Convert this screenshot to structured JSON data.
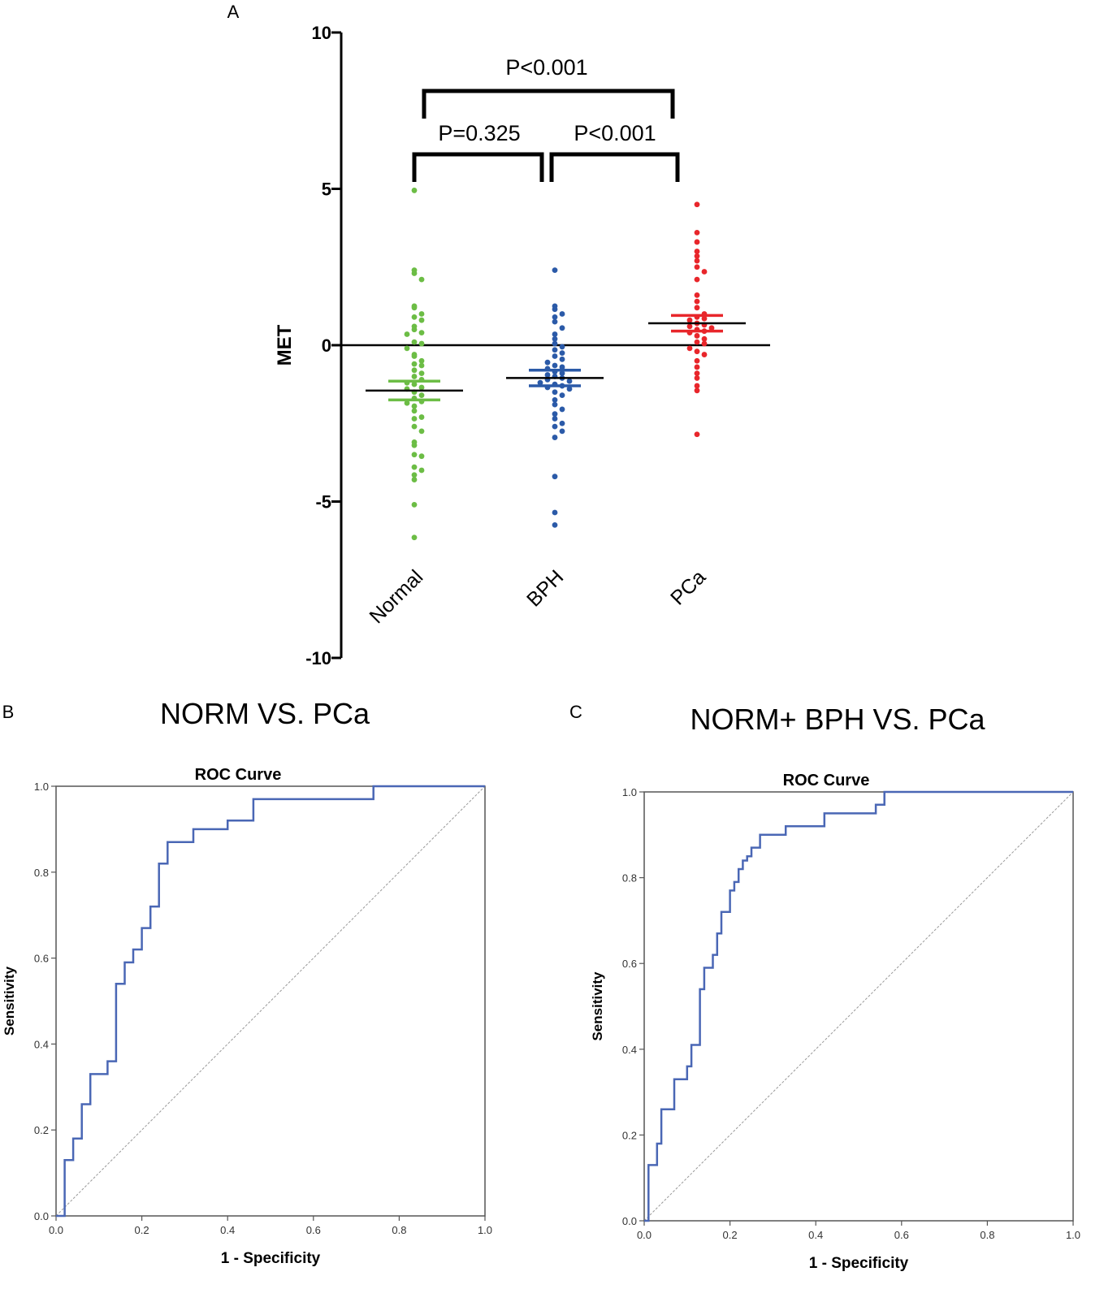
{
  "chart_data": [
    {
      "type": "scatter",
      "panel": "A",
      "ylabel": "MET",
      "ylim": [
        -10,
        10
      ],
      "yticks": [
        "10",
        "5",
        "0",
        "-5",
        "-10"
      ],
      "categories": [
        "Normal",
        "BPH",
        "PCa"
      ],
      "colors": {
        "Normal": "#6cbd45",
        "BPH": "#2b5aa8",
        "PCa": "#e8262b"
      },
      "groups": [
        {
          "name": "Normal",
          "mean": -1.45,
          "sem_low": -1.75,
          "sem_high": -1.15,
          "values": [
            4.95,
            2.4,
            2.3,
            2.1,
            1.25,
            1.2,
            1.0,
            0.9,
            0.8,
            0.6,
            0.5,
            0.4,
            0.35,
            0.1,
            0.05,
            -0.1,
            -0.3,
            -0.35,
            -0.5,
            -0.6,
            -0.65,
            -0.8,
            -0.9,
            -1.0,
            -1.1,
            -1.2,
            -1.25,
            -1.35,
            -1.4,
            -1.5,
            -1.6,
            -1.7,
            -1.8,
            -1.85,
            -1.95,
            -2.1,
            -2.3,
            -2.35,
            -2.6,
            -2.75,
            -3.1,
            -3.2,
            -3.5,
            -3.55,
            -3.9,
            -4.0,
            -4.15,
            -4.3,
            -5.1,
            -6.15
          ]
        },
        {
          "name": "BPH",
          "mean": -1.05,
          "sem_low": -1.3,
          "sem_high": -0.8,
          "values": [
            2.4,
            1.25,
            1.15,
            1.0,
            0.9,
            0.75,
            0.55,
            0.35,
            0.2,
            0.05,
            -0.05,
            -0.15,
            -0.25,
            -0.35,
            -0.45,
            -0.55,
            -0.65,
            -0.7,
            -0.75,
            -0.85,
            -0.9,
            -0.95,
            -1.0,
            -1.05,
            -1.1,
            -1.15,
            -1.2,
            -1.25,
            -1.3,
            -1.35,
            -1.4,
            -1.5,
            -1.6,
            -1.75,
            -1.9,
            -2.05,
            -2.2,
            -2.35,
            -2.5,
            -2.6,
            -2.75,
            -2.95,
            -4.2,
            -5.35,
            -5.75
          ]
        },
        {
          "name": "PCa",
          "mean": 0.7,
          "sem_low": 0.45,
          "sem_high": 0.95,
          "values": [
            4.5,
            3.6,
            3.3,
            3.0,
            2.85,
            2.7,
            2.5,
            2.35,
            2.1,
            1.6,
            1.4,
            1.2,
            1.0,
            0.9,
            0.85,
            0.8,
            0.7,
            0.65,
            0.6,
            0.55,
            0.5,
            0.45,
            0.4,
            0.3,
            0.2,
            0.1,
            0.05,
            -0.1,
            -0.2,
            -0.3,
            -0.5,
            -0.7,
            -0.9,
            -1.05,
            -1.3,
            -1.45,
            -2.85
          ]
        }
      ],
      "annotations": [
        {
          "text": "P=0.325",
          "from": "Normal",
          "to": "BPH",
          "level": "lower"
        },
        {
          "text": "P<0.001",
          "from": "BPH",
          "to": "PCa",
          "level": "lower"
        },
        {
          "text": "P<0.001",
          "from": "Normal",
          "to": "PCa",
          "level": "upper"
        }
      ]
    },
    {
      "type": "line",
      "panel": "B",
      "title": "NORM VS. PCa",
      "subtitle": "ROC Curve",
      "xlabel": "1 - Specificity",
      "ylabel": "Sensitivity",
      "xlim": [
        0,
        1
      ],
      "ylim": [
        0,
        1
      ],
      "xticks": [
        "0.0",
        "0.2",
        "0.4",
        "0.6",
        "0.8",
        "1.0"
      ],
      "yticks": [
        "0.0",
        "0.2",
        "0.4",
        "0.6",
        "0.8",
        "1.0"
      ],
      "reference_line": true,
      "x": [
        0.0,
        0.02,
        0.02,
        0.04,
        0.04,
        0.06,
        0.06,
        0.08,
        0.08,
        0.12,
        0.12,
        0.14,
        0.14,
        0.16,
        0.16,
        0.18,
        0.18,
        0.2,
        0.2,
        0.22,
        0.22,
        0.24,
        0.24,
        0.26,
        0.26,
        0.32,
        0.32,
        0.4,
        0.4,
        0.46,
        0.46,
        0.74,
        0.74,
        1.0
      ],
      "y": [
        0.0,
        0.0,
        0.13,
        0.13,
        0.18,
        0.18,
        0.26,
        0.26,
        0.33,
        0.33,
        0.36,
        0.36,
        0.54,
        0.54,
        0.59,
        0.59,
        0.62,
        0.62,
        0.67,
        0.67,
        0.72,
        0.72,
        0.82,
        0.82,
        0.87,
        0.87,
        0.9,
        0.9,
        0.92,
        0.92,
        0.97,
        0.97,
        1.0,
        1.0
      ]
    },
    {
      "type": "line",
      "panel": "C",
      "title": "NORM+ BPH VS. PCa",
      "subtitle": "ROC Curve",
      "xlabel": "1 - Specificity",
      "ylabel": "Sensitivity",
      "xlim": [
        0,
        1
      ],
      "ylim": [
        0,
        1
      ],
      "xticks": [
        "0.0",
        "0.2",
        "0.4",
        "0.6",
        "0.8",
        "1.0"
      ],
      "yticks": [
        "0.0",
        "0.2",
        "0.4",
        "0.6",
        "0.8",
        "1.0"
      ],
      "reference_line": true,
      "x": [
        0.0,
        0.01,
        0.01,
        0.03,
        0.03,
        0.04,
        0.04,
        0.07,
        0.07,
        0.1,
        0.1,
        0.11,
        0.11,
        0.13,
        0.13,
        0.14,
        0.14,
        0.16,
        0.16,
        0.17,
        0.17,
        0.18,
        0.18,
        0.2,
        0.2,
        0.21,
        0.21,
        0.22,
        0.22,
        0.23,
        0.23,
        0.24,
        0.24,
        0.25,
        0.25,
        0.26,
        0.26,
        0.27,
        0.27,
        0.33,
        0.33,
        0.42,
        0.42,
        0.54,
        0.54,
        0.56,
        0.56,
        0.82,
        0.82,
        1.0
      ],
      "y": [
        0.0,
        0.0,
        0.13,
        0.13,
        0.18,
        0.18,
        0.26,
        0.26,
        0.33,
        0.33,
        0.36,
        0.36,
        0.41,
        0.41,
        0.54,
        0.54,
        0.59,
        0.59,
        0.62,
        0.62,
        0.67,
        0.67,
        0.72,
        0.72,
        0.77,
        0.77,
        0.79,
        0.79,
        0.82,
        0.82,
        0.84,
        0.84,
        0.85,
        0.85,
        0.87,
        0.87,
        0.87,
        0.87,
        0.9,
        0.9,
        0.92,
        0.92,
        0.95,
        0.95,
        0.97,
        0.97,
        1.0,
        1.0,
        1.0,
        1.0
      ]
    }
  ],
  "panel_labels": {
    "a": "A",
    "b": "B",
    "c": "C"
  }
}
